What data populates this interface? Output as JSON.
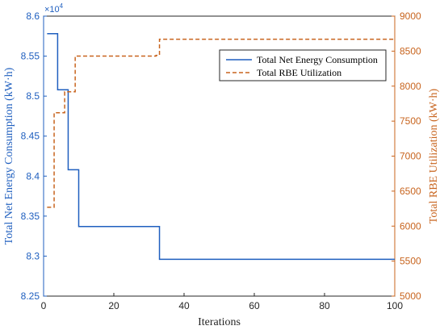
{
  "chart_data": {
    "type": "line",
    "xlabel": "Iterations",
    "ylabel_left": "Total Net Energy Consumption (kW·h)",
    "ylabel_right": "Total RBE Utilization (kW·h)",
    "exponent_label": "×10",
    "exponent_power": "4",
    "xlim": [
      0,
      100
    ],
    "ylim_left": [
      8.25,
      8.6
    ],
    "ylim_right": [
      5000,
      9000
    ],
    "x_ticks": [
      "0",
      "20",
      "40",
      "60",
      "80",
      "100"
    ],
    "y_ticks_left": [
      "8.25",
      "8.3",
      "8.35",
      "8.4",
      "8.45",
      "8.5",
      "8.55",
      "8.6"
    ],
    "y_ticks_right": [
      "5000",
      "5500",
      "6000",
      "6500",
      "7000",
      "7500",
      "8000",
      "8500",
      "9000"
    ],
    "legend_position": "top-right",
    "series": [
      {
        "name": "Total Net Energy Consumption",
        "axis": "left",
        "style": "solid",
        "color": "#1f5fbf",
        "x": [
          1,
          4,
          4,
          7,
          7,
          10,
          10,
          33,
          33,
          100
        ],
        "y": [
          8.578,
          8.578,
          8.508,
          8.508,
          8.408,
          8.408,
          8.337,
          8.337,
          8.296,
          8.296
        ]
      },
      {
        "name": "Total RBE Utilization",
        "axis": "right",
        "style": "dashed",
        "color": "#c8641e",
        "x": [
          1,
          3,
          3,
          6,
          6,
          9,
          9,
          32,
          32,
          33,
          33,
          100
        ],
        "y": [
          6270,
          6270,
          7620,
          7620,
          7920,
          7920,
          8430,
          8430,
          8440,
          8440,
          8670,
          8670
        ]
      }
    ]
  },
  "colors": {
    "left_axis": "#1f5fbf",
    "right_axis": "#c8641e",
    "frame": "#262626"
  }
}
